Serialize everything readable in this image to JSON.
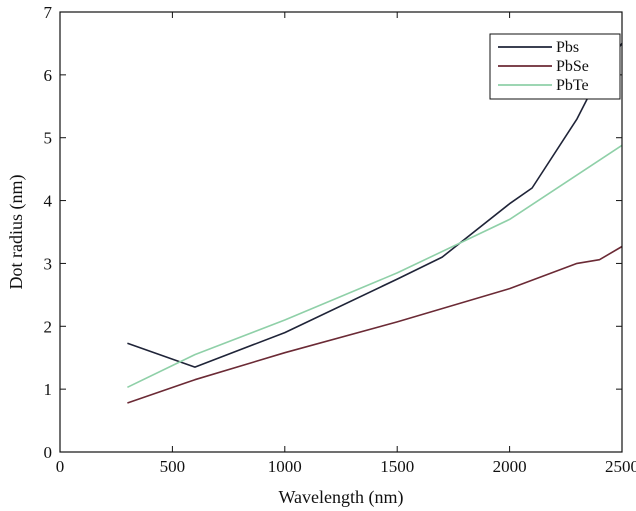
{
  "chart_data": {
    "type": "line",
    "xlabel": "Wavelength (nm)",
    "ylabel": "Dot radius (nm)",
    "xlim": [
      0,
      2500
    ],
    "ylim": [
      0,
      7
    ],
    "xticks": [
      0,
      500,
      1000,
      1500,
      2000,
      2500
    ],
    "yticks": [
      0,
      1,
      2,
      3,
      4,
      5,
      6,
      7
    ],
    "grid": false,
    "legend_position": "top-right",
    "series": [
      {
        "name": "Pbs",
        "color": "#1f2438",
        "x": [
          300,
          600,
          1000,
          1500,
          1700,
          2000,
          2100,
          2300,
          2400,
          2500
        ],
        "y": [
          1.73,
          1.35,
          1.9,
          2.75,
          3.1,
          3.95,
          4.2,
          5.3,
          6.0,
          6.5
        ]
      },
      {
        "name": "PbSe",
        "color": "#6b2a35",
        "x": [
          300,
          600,
          1000,
          1500,
          2000,
          2300,
          2400,
          2500
        ],
        "y": [
          0.78,
          1.15,
          1.58,
          2.07,
          2.6,
          3.0,
          3.06,
          3.27
        ]
      },
      {
        "name": "PbTe",
        "color": "#8fd0a8",
        "x": [
          300,
          600,
          1000,
          1500,
          2000,
          2500
        ],
        "y": [
          1.03,
          1.55,
          2.1,
          2.85,
          3.7,
          4.88
        ]
      }
    ]
  }
}
